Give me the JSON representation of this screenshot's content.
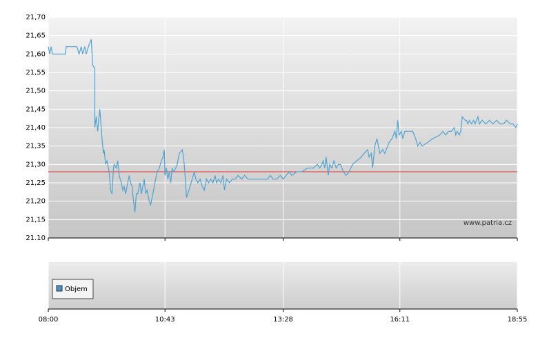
{
  "chart_data": {
    "type": "line",
    "x": [
      480,
      482,
      484,
      486,
      504,
      505,
      520,
      523,
      526,
      528,
      531,
      533,
      536,
      540,
      542,
      545,
      545,
      547,
      549,
      552,
      555,
      557,
      558,
      560,
      562,
      565,
      567,
      569,
      571,
      572,
      575,
      577,
      579,
      582,
      584,
      586,
      588,
      591,
      593,
      595,
      597,
      599,
      601,
      603,
      605,
      608,
      610,
      612,
      614,
      616,
      618,
      621,
      623,
      626,
      629,
      632,
      635,
      638,
      640,
      642,
      643,
      645,
      647,
      649,
      651,
      653,
      655,
      658,
      660,
      663,
      667,
      669,
      671,
      673,
      675,
      678,
      681,
      684,
      686,
      689,
      692,
      695,
      698,
      701,
      704,
      707,
      710,
      713,
      715,
      718,
      721,
      724,
      726,
      729,
      733,
      737,
      741,
      745,
      750,
      754,
      759,
      769,
      778,
      786,
      790,
      794,
      799,
      804,
      808,
      812,
      817,
      820,
      827,
      834,
      842,
      850,
      856,
      859,
      862,
      864,
      866,
      868,
      871,
      873,
      876,
      879,
      882,
      885,
      888,
      892,
      896,
      900,
      905,
      911,
      917,
      921,
      926,
      928,
      931,
      933,
      936,
      939,
      943,
      947,
      950,
      954,
      956,
      960,
      962,
      964,
      966,
      968,
      970,
      973,
      975,
      978,
      980,
      984,
      989,
      993,
      996,
      999,
      1002,
      1010,
      1017,
      1027,
      1031,
      1035,
      1039,
      1043,
      1047,
      1049,
      1051,
      1054,
      1056,
      1058,
      1062,
      1064,
      1066,
      1068,
      1071,
      1074,
      1076,
      1080,
      1082,
      1086,
      1091,
      1096,
      1101,
      1106,
      1111,
      1116,
      1120,
      1125,
      1129,
      1133,
      1135
    ],
    "series": [
      {
        "color": "#4fa3d1",
        "values": [
          21.62,
          21.6,
          21.62,
          21.6,
          21.6,
          21.62,
          21.62,
          21.6,
          21.62,
          21.6,
          21.62,
          21.6,
          21.62,
          21.64,
          21.57,
          21.56,
          21.4,
          21.43,
          21.39,
          21.45,
          21.37,
          21.33,
          21.34,
          21.3,
          21.31,
          21.28,
          21.23,
          21.22,
          21.29,
          21.3,
          21.29,
          21.31,
          21.27,
          21.25,
          21.23,
          21.24,
          21.22,
          21.25,
          21.27,
          21.25,
          21.24,
          21.2,
          21.17,
          21.22,
          21.22,
          21.25,
          21.22,
          21.24,
          21.26,
          21.22,
          21.23,
          21.2,
          21.19,
          21.22,
          21.25,
          21.28,
          21.29,
          21.31,
          21.32,
          21.34,
          21.27,
          21.29,
          21.26,
          21.28,
          21.25,
          21.29,
          21.28,
          21.29,
          21.3,
          21.33,
          21.34,
          21.32,
          21.27,
          21.21,
          21.22,
          21.24,
          21.26,
          21.28,
          21.26,
          21.25,
          21.26,
          21.24,
          21.23,
          21.26,
          21.25,
          21.26,
          21.25,
          21.27,
          21.25,
          21.26,
          21.25,
          21.27,
          21.23,
          21.26,
          21.25,
          21.26,
          21.26,
          21.27,
          21.26,
          21.27,
          21.26,
          21.26,
          21.26,
          21.26,
          21.27,
          21.26,
          21.26,
          21.27,
          21.26,
          21.27,
          21.28,
          21.27,
          21.28,
          21.28,
          21.29,
          21.29,
          21.3,
          21.29,
          21.3,
          21.31,
          21.29,
          21.32,
          21.27,
          21.3,
          21.29,
          21.31,
          21.29,
          21.3,
          21.3,
          21.28,
          21.27,
          21.28,
          21.3,
          21.31,
          21.32,
          21.33,
          21.34,
          21.32,
          21.33,
          21.29,
          21.35,
          21.37,
          21.33,
          21.34,
          21.33,
          21.35,
          21.36,
          21.37,
          21.38,
          21.39,
          21.37,
          21.42,
          21.38,
          21.39,
          21.37,
          21.39,
          21.39,
          21.39,
          21.39,
          21.37,
          21.35,
          21.36,
          21.35,
          21.36,
          21.37,
          21.38,
          21.39,
          21.38,
          21.39,
          21.39,
          21.4,
          21.38,
          21.39,
          21.38,
          21.39,
          21.43,
          21.42,
          21.42,
          21.41,
          21.42,
          21.41,
          21.42,
          21.41,
          21.43,
          21.41,
          21.42,
          21.41,
          21.42,
          21.41,
          21.42,
          21.41,
          21.41,
          21.42,
          21.41,
          21.41,
          21.4,
          21.41
        ]
      }
    ],
    "xlim": [
      480,
      1135
    ],
    "xticks": [
      {
        "value": 480,
        "label": "08:00"
      },
      {
        "value": 643,
        "label": "10:43"
      },
      {
        "value": 808,
        "label": "13:28"
      },
      {
        "value": 971,
        "label": "16:11"
      },
      {
        "value": 1135,
        "label": "18:55"
      }
    ],
    "ylim": [
      21.1,
      21.7
    ],
    "yticks": [
      {
        "value": 21.7,
        "label": "21,70"
      },
      {
        "value": 21.65,
        "label": "21,65"
      },
      {
        "value": 21.6,
        "label": "21,60"
      },
      {
        "value": 21.55,
        "label": "21,55"
      },
      {
        "value": 21.5,
        "label": "21,50"
      },
      {
        "value": 21.45,
        "label": "21,45"
      },
      {
        "value": 21.4,
        "label": "21,40"
      },
      {
        "value": 21.35,
        "label": "21,35"
      },
      {
        "value": 21.3,
        "label": "21,30"
      },
      {
        "value": 21.25,
        "label": "21,25"
      },
      {
        "value": 21.2,
        "label": "21,20"
      },
      {
        "value": 21.15,
        "label": "21,15"
      },
      {
        "value": 21.1,
        "label": "21.10"
      }
    ],
    "grid": true,
    "reference_line": {
      "value": 21.28,
      "color": "#e03030"
    },
    "watermark": "www.patria.cz",
    "volume_legend": {
      "name": "Objem",
      "color": "#4a90c8"
    }
  }
}
